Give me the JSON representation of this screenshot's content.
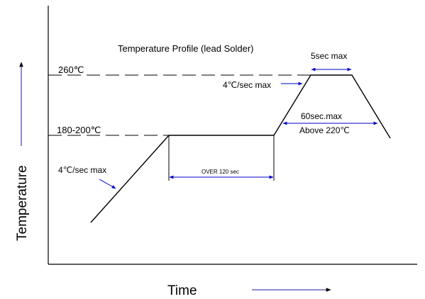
{
  "title": "Temperature Profile (lead Solder)",
  "labels": {
    "peak_temp": "260℃",
    "soak_temp": "180-200℃",
    "ramp_up": "4℃/sec max",
    "ramp_peak": "4℃/sec max",
    "peak_hold": "5sec max",
    "reflow_time": "60sec.max",
    "reflow_condition": "Above 220℃",
    "soak_time": "OVER 120 sec"
  },
  "axes": {
    "y_label": "Temperature",
    "x_label": "Time"
  },
  "colors": {
    "line": "#000000",
    "arrow": "#0000cc",
    "axis_arrow": "#1a1aa6"
  }
}
